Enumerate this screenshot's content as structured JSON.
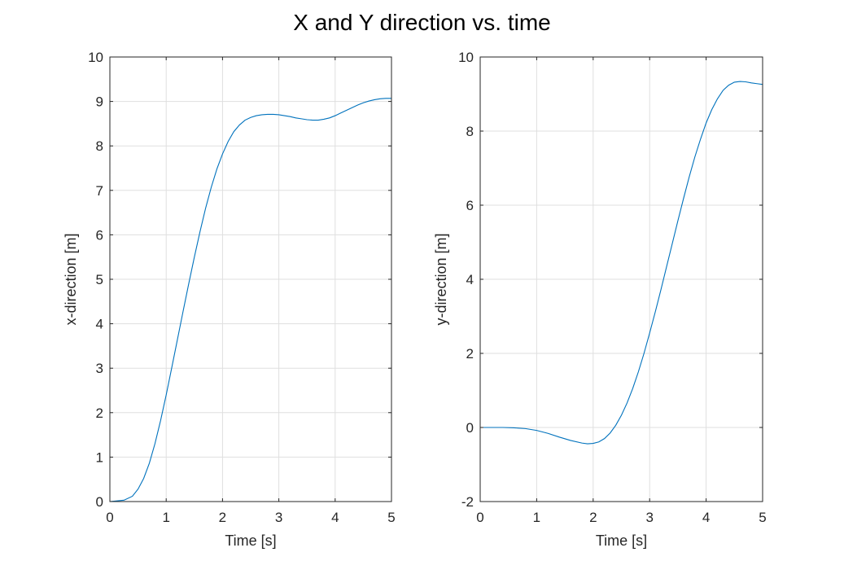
{
  "figure": {
    "title": "X and Y direction vs. time"
  },
  "chart_data": [
    {
      "type": "line",
      "xlabel": "Time [s]",
      "ylabel": "x-direction [m]",
      "xlim": [
        0,
        5
      ],
      "ylim": [
        0,
        10
      ],
      "xticks": [
        0,
        1,
        2,
        3,
        4,
        5
      ],
      "yticks": [
        0,
        1,
        2,
        3,
        4,
        5,
        6,
        7,
        8,
        9,
        10
      ],
      "grid": true,
      "series": [
        {
          "color": "#0072BD",
          "x": [
            0,
            0.25,
            0.4,
            0.5,
            0.6,
            0.7,
            0.8,
            0.9,
            1.0,
            1.1,
            1.2,
            1.3,
            1.4,
            1.5,
            1.6,
            1.7,
            1.8,
            1.9,
            2.0,
            2.1,
            2.2,
            2.3,
            2.4,
            2.5,
            2.6,
            2.7,
            2.8,
            2.9,
            3.0,
            3.1,
            3.2,
            3.3,
            3.4,
            3.5,
            3.6,
            3.7,
            3.8,
            3.9,
            4.0,
            4.1,
            4.2,
            4.3,
            4.4,
            4.5,
            4.6,
            4.7,
            4.8,
            4.9,
            5.0
          ],
          "y": [
            0,
            0.03,
            0.12,
            0.28,
            0.52,
            0.86,
            1.3,
            1.82,
            2.4,
            3.02,
            3.65,
            4.28,
            4.9,
            5.5,
            6.07,
            6.6,
            7.07,
            7.48,
            7.82,
            8.1,
            8.32,
            8.47,
            8.58,
            8.64,
            8.68,
            8.7,
            8.71,
            8.71,
            8.7,
            8.68,
            8.66,
            8.63,
            8.61,
            8.59,
            8.58,
            8.58,
            8.6,
            8.63,
            8.68,
            8.74,
            8.8,
            8.86,
            8.92,
            8.97,
            9.01,
            9.04,
            9.06,
            9.07,
            9.07
          ]
        }
      ]
    },
    {
      "type": "line",
      "xlabel": "Time [s]",
      "ylabel": "y-direction [m]",
      "xlim": [
        0,
        5
      ],
      "ylim": [
        -2,
        10
      ],
      "xticks": [
        0,
        1,
        2,
        3,
        4,
        5
      ],
      "yticks": [
        -2,
        0,
        2,
        4,
        6,
        8,
        10
      ],
      "grid": true,
      "series": [
        {
          "color": "#0072BD",
          "x": [
            0,
            0.2,
            0.4,
            0.6,
            0.8,
            1.0,
            1.2,
            1.4,
            1.6,
            1.8,
            1.9,
            2.0,
            2.1,
            2.2,
            2.3,
            2.4,
            2.5,
            2.6,
            2.7,
            2.8,
            2.9,
            3.0,
            3.1,
            3.2,
            3.3,
            3.4,
            3.5,
            3.6,
            3.7,
            3.8,
            3.9,
            4.0,
            4.1,
            4.2,
            4.3,
            4.4,
            4.5,
            4.6,
            4.7,
            4.8,
            4.9,
            5.0
          ],
          "y": [
            0,
            0,
            0,
            -0.01,
            -0.03,
            -0.08,
            -0.16,
            -0.26,
            -0.35,
            -0.42,
            -0.44,
            -0.43,
            -0.39,
            -0.3,
            -0.15,
            0.06,
            0.33,
            0.66,
            1.05,
            1.5,
            2.0,
            2.55,
            3.12,
            3.72,
            4.34,
            4.96,
            5.58,
            6.18,
            6.76,
            7.3,
            7.78,
            8.22,
            8.58,
            8.87,
            9.1,
            9.24,
            9.32,
            9.34,
            9.33,
            9.3,
            9.28,
            9.26
          ]
        }
      ]
    }
  ]
}
